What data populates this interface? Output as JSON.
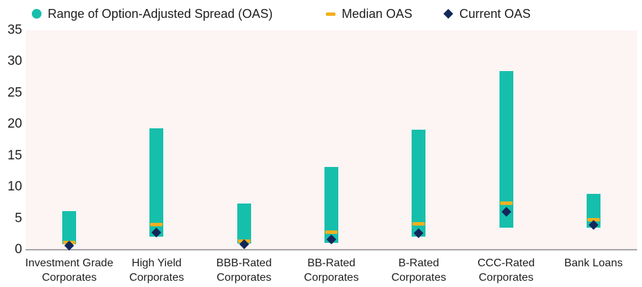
{
  "legend": {
    "items": [
      {
        "label": "Range of Option-Adjusted Spread (OAS)",
        "marker": "circle",
        "color": "#16bfac"
      },
      {
        "label": "Median OAS",
        "marker": "dash",
        "color": "#f2b01e"
      },
      {
        "label": "Current OAS",
        "marker": "diamond",
        "color": "#13275b"
      }
    ]
  },
  "chart_data": {
    "type": "bar",
    "subtype": "floating-range-with-median-and-current-markers",
    "title": "",
    "xlabel": "",
    "ylabel": "",
    "categories": [
      "Investment Grade Corporates",
      "High Yield Corporates",
      "BBB-Rated Corporates",
      "BB-Rated Corporates",
      "B-Rated Corporates",
      "CCC-Rated Corporates",
      "Bank Loans"
    ],
    "category_lines": [
      [
        "Investment Grade",
        "Corporates"
      ],
      [
        "High Yield",
        "Corporates"
      ],
      [
        "BBB-Rated",
        "Corporates"
      ],
      [
        "BB-Rated",
        "Corporates"
      ],
      [
        "B-Rated",
        "Corporates"
      ],
      [
        "CCC-Rated",
        "Corporates"
      ],
      [
        "Bank Loans"
      ]
    ],
    "series": [
      {
        "name": "Range of Option-Adjusted Spread (OAS)",
        "type": "range",
        "low": [
          0.9,
          2.1,
          1.0,
          1.1,
          2.1,
          3.5,
          3.5
        ],
        "high": [
          6.2,
          19.4,
          7.4,
          13.2,
          19.2,
          28.5,
          8.9
        ],
        "color": "#16bfac"
      },
      {
        "name": "Median OAS",
        "type": "tick",
        "values": [
          1.2,
          4.0,
          1.4,
          2.8,
          4.1,
          7.4,
          4.8
        ],
        "color": "#f2b01e"
      },
      {
        "name": "Current OAS",
        "type": "diamond",
        "values": [
          0.7,
          2.7,
          0.9,
          1.6,
          2.6,
          6.1,
          4.0
        ],
        "color": "#13275b"
      }
    ],
    "ylim": [
      0,
      35
    ],
    "yticks": [
      0,
      5,
      10,
      15,
      20,
      25,
      30,
      35
    ],
    "grid": false,
    "legend_position": "top-left",
    "plot_bg": "#fdf4f4",
    "axis_line_color": "#a6a6a6",
    "text_color": "#1e1e1e"
  }
}
